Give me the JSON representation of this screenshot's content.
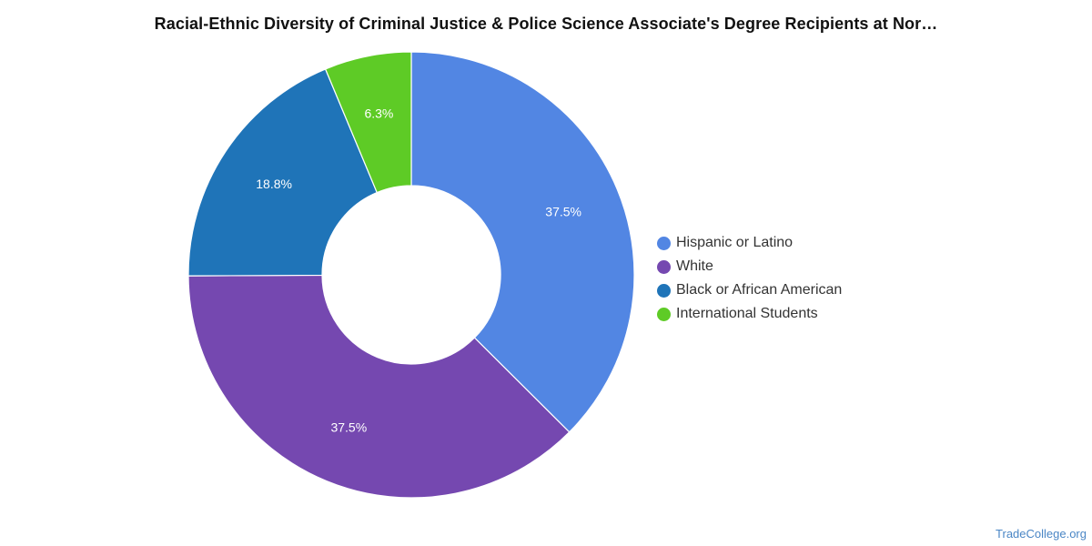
{
  "title": "Racial-Ethnic Diversity of Criminal Justice & Police Science Associate's Degree Recipients at Nor…",
  "source": "TradeCollege.org",
  "chart_data": {
    "type": "pie",
    "donut": true,
    "title": "Racial-Ethnic Diversity of Criminal Justice & Police Science Associate's Degree Recipients at Nor…",
    "legend_position": "right",
    "slices": [
      {
        "label": "Hispanic or Latino",
        "value": 37.5,
        "display": "37.5%",
        "color": "#5286e3"
      },
      {
        "label": "White",
        "value": 37.5,
        "display": "37.5%",
        "color": "#7548b0"
      },
      {
        "label": "Black or African American",
        "value": 18.8,
        "display": "18.8%",
        "color": "#1f74b8"
      },
      {
        "label": "International Students",
        "value": 6.3,
        "display": "6.3%",
        "color": "#5ecb26"
      }
    ]
  }
}
